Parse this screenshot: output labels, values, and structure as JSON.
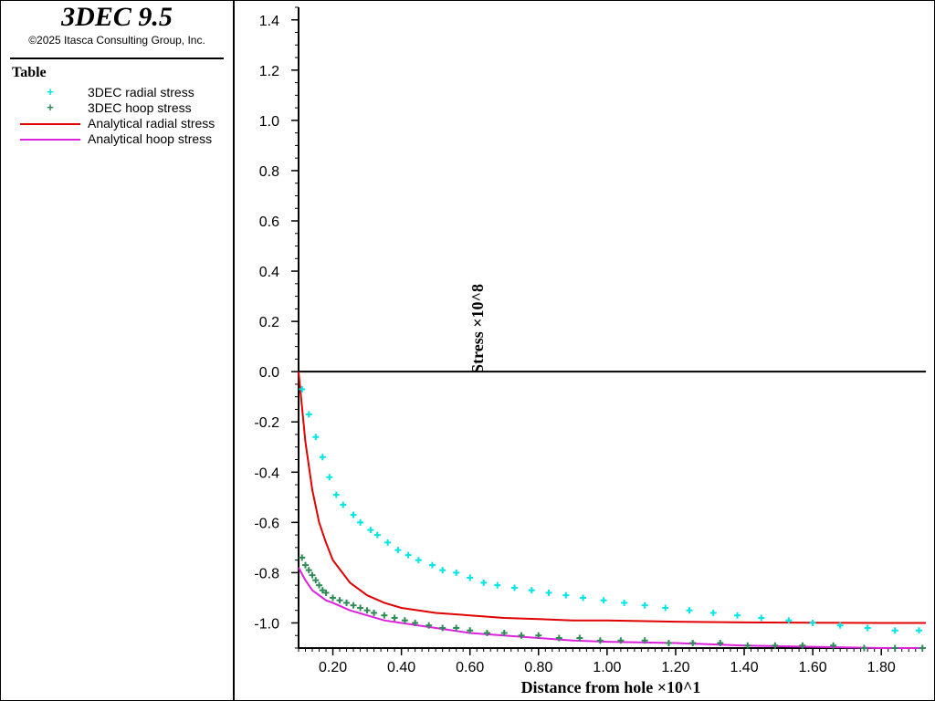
{
  "header": {
    "app_title": "3DEC 9.5",
    "copyright": "©2025 Itasca Consulting Group, Inc."
  },
  "legend": {
    "heading": "Table",
    "entries": [
      {
        "label": "3DEC radial stress",
        "color": "#00e5e5",
        "style": "marker"
      },
      {
        "label": "3DEC hoop stress",
        "color": "#2e8b57",
        "style": "marker"
      },
      {
        "label": "Analytical radial stress",
        "color": "#e00000",
        "style": "line"
      },
      {
        "label": "Analytical hoop stress",
        "color": "#dd22dd",
        "style": "line"
      }
    ]
  },
  "chart_data": {
    "type": "scatter",
    "xlabel": "Distance from hole ×10^1",
    "ylabel": "Stress ×10^8",
    "xlim": [
      0.1,
      1.93
    ],
    "ylim": [
      -1.1,
      1.45
    ],
    "x_ticks": [
      "0.20",
      "0.40",
      "0.60",
      "0.80",
      "1.00",
      "1.20",
      "1.40",
      "1.60",
      "1.80"
    ],
    "y_ticks": [
      "1.4",
      "1.2",
      "1.0",
      "0.8",
      "0.6",
      "0.4",
      "0.2",
      "0.0",
      "-0.2",
      "-0.4",
      "-0.6",
      "-0.8",
      "-1.0"
    ],
    "x_tick_values": [
      0.2,
      0.4,
      0.6,
      0.8,
      1.0,
      1.2,
      1.4,
      1.6,
      1.8
    ],
    "y_tick_values": [
      1.4,
      1.2,
      1.0,
      0.8,
      0.6,
      0.4,
      0.2,
      0.0,
      -0.2,
      -0.4,
      -0.6,
      -0.8,
      -1.0
    ],
    "zero_line": true,
    "series": [
      {
        "name": "3DEC radial stress",
        "kind": "scatter",
        "color": "#00e5e5",
        "x": [
          0.11,
          0.13,
          0.15,
          0.17,
          0.19,
          0.21,
          0.23,
          0.26,
          0.28,
          0.31,
          0.33,
          0.36,
          0.39,
          0.42,
          0.45,
          0.49,
          0.52,
          0.56,
          0.6,
          0.64,
          0.68,
          0.73,
          0.78,
          0.83,
          0.88,
          0.93,
          0.99,
          1.05,
          1.11,
          1.17,
          1.24,
          1.31,
          1.38,
          1.45,
          1.53,
          1.6,
          1.68,
          1.76,
          1.84,
          1.91
        ],
        "y": [
          -0.07,
          -0.17,
          -0.26,
          -0.34,
          -0.42,
          -0.49,
          -0.53,
          -0.57,
          -0.6,
          -0.63,
          -0.65,
          -0.68,
          -0.71,
          -0.73,
          -0.75,
          -0.77,
          -0.79,
          -0.8,
          -0.82,
          -0.84,
          -0.85,
          -0.86,
          -0.87,
          -0.88,
          -0.89,
          -0.9,
          -0.91,
          -0.92,
          -0.93,
          -0.94,
          -0.95,
          -0.96,
          -0.97,
          -0.98,
          -0.99,
          -1.0,
          -1.01,
          -1.02,
          -1.03,
          -1.03
        ]
      },
      {
        "name": "3DEC hoop stress",
        "kind": "scatter",
        "color": "#2e8b57",
        "x": [
          0.11,
          0.12,
          0.13,
          0.14,
          0.15,
          0.16,
          0.17,
          0.18,
          0.2,
          0.22,
          0.24,
          0.26,
          0.28,
          0.3,
          0.32,
          0.35,
          0.38,
          0.41,
          0.44,
          0.48,
          0.52,
          0.56,
          0.6,
          0.65,
          0.7,
          0.75,
          0.8,
          0.86,
          0.92,
          0.98,
          1.04,
          1.11,
          1.18,
          1.25,
          1.33,
          1.41,
          1.49,
          1.57,
          1.66,
          1.75,
          1.84,
          1.92
        ],
        "y": [
          -0.74,
          -0.77,
          -0.79,
          -0.81,
          -0.83,
          -0.85,
          -0.87,
          -0.88,
          -0.9,
          -0.91,
          -0.92,
          -0.93,
          -0.94,
          -0.95,
          -0.96,
          -0.97,
          -0.98,
          -0.99,
          -1.0,
          -1.01,
          -1.02,
          -1.02,
          -1.03,
          -1.04,
          -1.04,
          -1.05,
          -1.05,
          -1.06,
          -1.06,
          -1.07,
          -1.07,
          -1.07,
          -1.08,
          -1.08,
          -1.08,
          -1.09,
          -1.09,
          -1.09,
          -1.09,
          -1.1,
          -1.1,
          -1.1
        ]
      },
      {
        "name": "Analytical radial stress",
        "kind": "line",
        "color": "#e00000",
        "x": [
          0.1,
          0.12,
          0.14,
          0.16,
          0.18,
          0.2,
          0.25,
          0.3,
          0.35,
          0.4,
          0.5,
          0.6,
          0.7,
          0.8,
          0.9,
          1.0,
          1.2,
          1.4,
          1.6,
          1.8,
          1.93
        ],
        "y": [
          0.0,
          -0.28,
          -0.47,
          -0.6,
          -0.68,
          -0.75,
          -0.84,
          -0.89,
          -0.92,
          -0.94,
          -0.96,
          -0.97,
          -0.98,
          -0.985,
          -0.99,
          -0.99,
          -0.995,
          -0.998,
          -0.999,
          -1.0,
          -1.0
        ]
      },
      {
        "name": "Analytical hoop stress",
        "kind": "line",
        "color": "#dd22dd",
        "x": [
          0.1,
          0.12,
          0.14,
          0.16,
          0.18,
          0.2,
          0.25,
          0.3,
          0.35,
          0.4,
          0.5,
          0.6,
          0.7,
          0.8,
          0.9,
          1.0,
          1.2,
          1.4,
          1.6,
          1.8,
          1.93
        ],
        "y": [
          -0.78,
          -0.83,
          -0.87,
          -0.89,
          -0.91,
          -0.92,
          -0.95,
          -0.97,
          -0.99,
          -1.0,
          -1.02,
          -1.04,
          -1.05,
          -1.06,
          -1.07,
          -1.075,
          -1.08,
          -1.09,
          -1.095,
          -1.1,
          -1.1
        ]
      }
    ]
  }
}
